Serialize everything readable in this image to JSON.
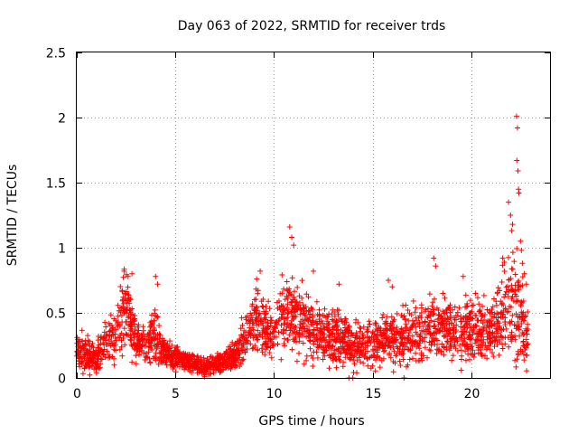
{
  "chart_data": {
    "type": "scatter",
    "title": "Day 063 of 2022, SRMTID for receiver trds",
    "xlabel": "GPS time / hours",
    "ylabel": "SRMTID / TECUs",
    "xlim": [
      0,
      24
    ],
    "ylim": [
      0,
      2.5
    ],
    "xticks": [
      0,
      5,
      10,
      15,
      20
    ],
    "xtick_labels": [
      "0",
      "5",
      "10",
      "15",
      "20"
    ],
    "yticks": [
      0,
      0.5,
      1,
      1.5,
      2,
      2.5
    ],
    "ytick_labels": [
      "0",
      "0.5",
      "1",
      "1.5",
      "2",
      "2.5"
    ],
    "grid": true,
    "marker": "+",
    "series_color": "#ff0000",
    "profile_note": "approximate envelope of the dense scatter: [hour, typical, spread]",
    "profile": [
      [
        0.0,
        0.22,
        0.08
      ],
      [
        0.5,
        0.18,
        0.08
      ],
      [
        1.0,
        0.14,
        0.06
      ],
      [
        1.5,
        0.28,
        0.12
      ],
      [
        2.0,
        0.32,
        0.12
      ],
      [
        2.5,
        0.55,
        0.2
      ],
      [
        3.0,
        0.28,
        0.1
      ],
      [
        3.5,
        0.24,
        0.08
      ],
      [
        4.0,
        0.3,
        0.14
      ],
      [
        4.5,
        0.18,
        0.06
      ],
      [
        5.0,
        0.16,
        0.06
      ],
      [
        5.5,
        0.14,
        0.05
      ],
      [
        6.0,
        0.1,
        0.04
      ],
      [
        6.5,
        0.09,
        0.04
      ],
      [
        7.0,
        0.11,
        0.04
      ],
      [
        7.5,
        0.13,
        0.05
      ],
      [
        8.0,
        0.16,
        0.06
      ],
      [
        8.5,
        0.3,
        0.12
      ],
      [
        9.0,
        0.5,
        0.18
      ],
      [
        9.5,
        0.38,
        0.12
      ],
      [
        10.0,
        0.35,
        0.12
      ],
      [
        10.5,
        0.5,
        0.18
      ],
      [
        11.0,
        0.45,
        0.16
      ],
      [
        11.5,
        0.42,
        0.16
      ],
      [
        12.0,
        0.38,
        0.14
      ],
      [
        12.5,
        0.3,
        0.12
      ],
      [
        13.0,
        0.33,
        0.14
      ],
      [
        13.5,
        0.3,
        0.12
      ],
      [
        14.0,
        0.25,
        0.1
      ],
      [
        14.5,
        0.27,
        0.1
      ],
      [
        15.0,
        0.26,
        0.1
      ],
      [
        15.5,
        0.3,
        0.12
      ],
      [
        16.0,
        0.32,
        0.12
      ],
      [
        16.5,
        0.3,
        0.12
      ],
      [
        17.0,
        0.35,
        0.14
      ],
      [
        17.5,
        0.36,
        0.14
      ],
      [
        18.0,
        0.42,
        0.16
      ],
      [
        18.5,
        0.4,
        0.14
      ],
      [
        19.0,
        0.38,
        0.14
      ],
      [
        19.5,
        0.35,
        0.14
      ],
      [
        20.0,
        0.38,
        0.14
      ],
      [
        20.5,
        0.36,
        0.14
      ],
      [
        21.0,
        0.35,
        0.14
      ],
      [
        21.5,
        0.5,
        0.18
      ],
      [
        22.0,
        0.6,
        0.3
      ],
      [
        22.5,
        0.45,
        0.22
      ],
      [
        22.9,
        0.3,
        0.12
      ]
    ],
    "peaks": [
      [
        2.4,
        0.82
      ],
      [
        2.6,
        0.78
      ],
      [
        2.8,
        0.8
      ],
      [
        4.0,
        0.78
      ],
      [
        4.1,
        0.72
      ],
      [
        9.3,
        0.82
      ],
      [
        10.8,
        1.16
      ],
      [
        10.9,
        1.08
      ],
      [
        11.0,
        1.02
      ],
      [
        12.0,
        0.82
      ],
      [
        13.3,
        0.72
      ],
      [
        15.8,
        0.75
      ],
      [
        16.0,
        0.7
      ],
      [
        18.1,
        0.92
      ],
      [
        18.2,
        0.86
      ],
      [
        19.6,
        0.78
      ],
      [
        21.6,
        0.92
      ],
      [
        21.9,
        1.35
      ],
      [
        22.0,
        1.25
      ],
      [
        22.1,
        1.18
      ],
      [
        22.3,
        2.01
      ],
      [
        22.35,
        1.92
      ],
      [
        22.32,
        1.67
      ],
      [
        22.38,
        1.59
      ],
      [
        22.4,
        1.45
      ],
      [
        22.42,
        1.42
      ],
      [
        22.5,
        1.05
      ],
      [
        22.55,
        0.98
      ],
      [
        22.6,
        0.88
      ],
      [
        22.7,
        0.8
      ],
      [
        22.8,
        0.72
      ]
    ],
    "lows": [
      [
        1.0,
        0.04
      ],
      [
        6.5,
        0.05
      ],
      [
        13.8,
        0.0
      ],
      [
        14.0,
        0.0
      ],
      [
        16.6,
        0.0
      ],
      [
        14.2,
        0.04
      ],
      [
        5.9,
        0.06
      ]
    ]
  }
}
